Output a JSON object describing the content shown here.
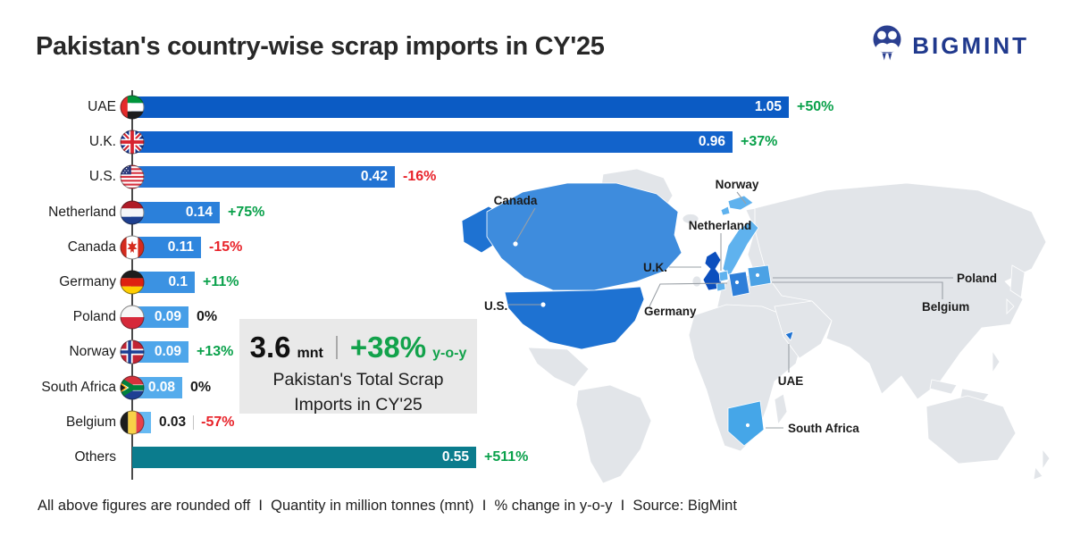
{
  "header": {
    "title": "Pakistan's country-wise scrap imports in CY'25"
  },
  "logo": {
    "text": "BIGMINT"
  },
  "chart_data": {
    "type": "bar",
    "orientation": "horizontal",
    "title": "Pakistan's country-wise scrap imports in CY'25",
    "unit": "million tonnes (mnt)",
    "categories": [
      "UAE",
      "U.K.",
      "U.S.",
      "Netherland",
      "Canada",
      "Germany",
      "Poland",
      "Norway",
      "South Africa",
      "Belgium",
      "Others"
    ],
    "series": [
      {
        "name": "Imports CY'25 (mnt)",
        "values": [
          1.05,
          0.96,
          0.42,
          0.14,
          0.11,
          0.1,
          0.09,
          0.09,
          0.08,
          0.03,
          0.55
        ]
      },
      {
        "name": "y-o-y % change",
        "values": [
          "+50%",
          "+37%",
          "-16%",
          "+75%",
          "-15%",
          "+11%",
          "0%",
          "+13%",
          "0%",
          "-57%",
          "+511%"
        ]
      }
    ],
    "xlim": [
      0,
      1.1
    ],
    "legend": "none",
    "grid": false,
    "total": {
      "value": 3.6,
      "unit": "mnt",
      "yoy_change": "+38%"
    }
  },
  "chart": {
    "rows": [
      {
        "country": "UAE",
        "value": "1.05",
        "value_num": 1.05,
        "change": "+50%",
        "trend": "up",
        "color": "#0B5BC4",
        "flag": "uae",
        "value_outside": false
      },
      {
        "country": "U.K.",
        "value": "0.96",
        "value_num": 0.96,
        "change": "+37%",
        "trend": "up",
        "color": "#1263CB",
        "flag": "uk",
        "value_outside": false
      },
      {
        "country": "U.S.",
        "value": "0.42",
        "value_num": 0.42,
        "change": "-16%",
        "trend": "down",
        "color": "#2273D3",
        "flag": "us",
        "value_outside": false
      },
      {
        "country": "Netherland",
        "value": "0.14",
        "value_num": 0.14,
        "change": "+75%",
        "trend": "up",
        "color": "#2B80DA",
        "flag": "netherlands",
        "value_outside": false
      },
      {
        "country": "Canada",
        "value": "0.11",
        "value_num": 0.11,
        "change": "-15%",
        "trend": "down",
        "color": "#2F86DE",
        "flag": "canada",
        "value_outside": false
      },
      {
        "country": "Germany",
        "value": "0.1",
        "value_num": 0.1,
        "change": "+11%",
        "trend": "up",
        "color": "#3B92E2",
        "flag": "germany",
        "value_outside": false
      },
      {
        "country": "Poland",
        "value": "0.09",
        "value_num": 0.09,
        "change": "0%",
        "trend": "flat",
        "color": "#469EE7",
        "flag": "poland",
        "value_outside": false
      },
      {
        "country": "Norway",
        "value": "0.09",
        "value_num": 0.09,
        "change": "+13%",
        "trend": "up",
        "color": "#4EA6EA",
        "flag": "norway",
        "value_outside": false
      },
      {
        "country": "South Africa",
        "value": "0.08",
        "value_num": 0.08,
        "change": "0%",
        "trend": "flat",
        "color": "#55ACEC",
        "flag": "south_africa",
        "value_outside": false
      },
      {
        "country": "Belgium",
        "value": "0.03",
        "value_num": 0.03,
        "change": "-57%",
        "trend": "down",
        "color": "#66B9F2",
        "flag": "belgium",
        "value_outside": true
      },
      {
        "country": "Others",
        "value": "0.55",
        "value_num": 0.55,
        "change": "+511%",
        "trend": "up",
        "color": "#0B7C8D",
        "flag": null,
        "value_outside": false
      }
    ],
    "colors": {
      "positive": "#0AA14B",
      "negative": "#E8232A",
      "neutral": "#1b1b1b",
      "others_bar": "#0B7C8D"
    }
  },
  "summary": {
    "total": "3.6",
    "total_unit": "mnt",
    "yoy": "+38%",
    "yoy_unit": "y-o-y",
    "caption_line1": "Pakistan's Total Scrap",
    "caption_line2": "Imports in CY'25"
  },
  "map": {
    "labels": [
      {
        "id": "canada",
        "text": "Canada"
      },
      {
        "id": "us",
        "text": "U.S."
      },
      {
        "id": "norway",
        "text": "Norway"
      },
      {
        "id": "netherland",
        "text": "Netherland"
      },
      {
        "id": "uk",
        "text": "U.K."
      },
      {
        "id": "germany",
        "text": "Germany"
      },
      {
        "id": "poland",
        "text": "Poland"
      },
      {
        "id": "belgium",
        "text": "Belgium"
      },
      {
        "id": "uae",
        "text": "UAE"
      },
      {
        "id": "south_africa",
        "text": "South Africa"
      }
    ]
  },
  "footer": {
    "text": "All above figures are rounded off  I  Quantity in million tonnes (mnt)  I  % change in y-o-y  I  Source: BigMint"
  }
}
